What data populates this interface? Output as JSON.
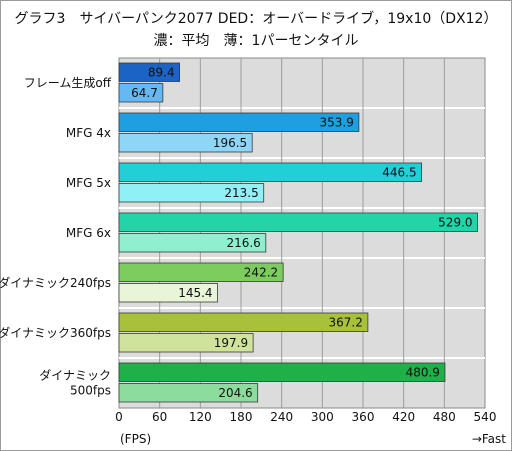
{
  "header": {
    "title": "グラフ3　サイバーパンク2077 DED：オーバードライブ，19x10（DX12）",
    "subtitle": "濃：平均　薄：1パーセンタイル"
  },
  "chart_data": {
    "type": "bar",
    "orientation": "horizontal",
    "title": "グラフ3　サイバーパンク2077 DED：オーバードライブ，19x10（DX12）",
    "subtitle": "濃：平均　薄：1パーセンタイル",
    "categories": [
      [
        "フレーム生成off"
      ],
      [
        "MFG 4x"
      ],
      [
        "MFG 5x"
      ],
      [
        "MFG 6x"
      ],
      [
        "ダイナミック240fps"
      ],
      [
        "ダイナミック360fps"
      ],
      [
        "ダイナミック",
        "500fps"
      ]
    ],
    "series": [
      {
        "name": "平均",
        "values": [
          89.4,
          353.9,
          446.5,
          529.0,
          242.2,
          367.2,
          480.9
        ]
      },
      {
        "name": "1パーセンタイル",
        "values": [
          64.7,
          196.5,
          213.5,
          216.6,
          145.4,
          197.9,
          204.6
        ]
      }
    ],
    "value_labels": {
      "avg": [
        "89.4",
        "353.9",
        "446.5",
        "529.0",
        "242.2",
        "367.2",
        "480.9"
      ],
      "low": [
        "64.7",
        "196.5",
        "213.5",
        "216.6",
        "145.4",
        "197.9",
        "204.6"
      ]
    },
    "colors": {
      "avg": [
        "#1b63c4",
        "#1f9fe0",
        "#22cfd6",
        "#22d5a8",
        "#7ccc5e",
        "#a9c03a",
        "#1fb04a"
      ],
      "low": [
        "#66b8f2",
        "#8fd5f6",
        "#8ff0f6",
        "#8ff0d0",
        "#e9f5d8",
        "#cfe39d",
        "#8cdd9d"
      ]
    },
    "xlim": [
      0,
      540
    ],
    "xticks": [
      0,
      60,
      120,
      180,
      240,
      300,
      360,
      420,
      480,
      540
    ],
    "xlabel": "(FPS)",
    "direction_note": "→Fast",
    "grid": true,
    "plot_background": "#dcdcdc"
  }
}
